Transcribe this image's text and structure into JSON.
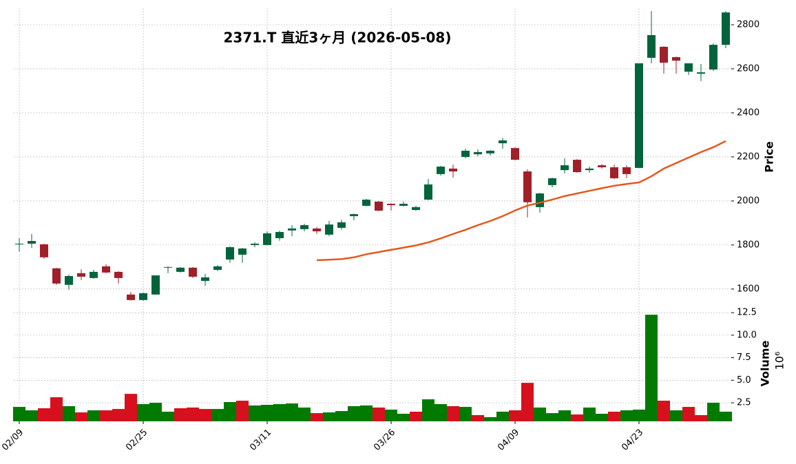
{
  "chart_data": {
    "type": "candlestick",
    "title": "2371.T  直近3ヶ月  (2026-05-08)",
    "ylabel": "Price",
    "y2label": "Volume",
    "y2offset": "10⁶",
    "categories": [
      "02/09",
      null,
      null,
      null,
      null,
      null,
      null,
      null,
      null,
      null,
      "02/25",
      null,
      null,
      null,
      null,
      null,
      null,
      null,
      null,
      null,
      "03/11",
      null,
      null,
      null,
      null,
      null,
      null,
      null,
      null,
      null,
      "03/26",
      null,
      null,
      null,
      null,
      null,
      null,
      null,
      null,
      null,
      "04/09",
      null,
      null,
      null,
      null,
      null,
      null,
      null,
      null,
      null,
      "04/23",
      null,
      null,
      null,
      null,
      null,
      null,
      null
    ],
    "open": [
      1803,
      1806,
      1803,
      1694,
      1619,
      1672,
      1650,
      1703,
      1678,
      1575,
      1550,
      1575,
      1697,
      1678,
      1697,
      1637,
      1687,
      1734,
      1756,
      1800,
      1800,
      1831,
      1866,
      1872,
      1875,
      1847,
      1878,
      1931,
      1978,
      1997,
      1987,
      1978,
      1959,
      2006,
      2122,
      2147,
      2200,
      2212,
      2216,
      2262,
      2240,
      2134,
      1972,
      2072,
      2140,
      2187,
      2140,
      2162,
      2153,
      2153,
      2150,
      2650,
      2700,
      2653,
      2587,
      2578,
      2597,
      2709
    ],
    "high": [
      1831,
      1850,
      1806,
      1697,
      1665,
      1690,
      1687,
      1712,
      1681,
      1587,
      1584,
      1662,
      1703,
      1700,
      1700,
      1669,
      1709,
      1794,
      1787,
      1812,
      1862,
      1865,
      1890,
      1897,
      1881,
      1909,
      1915,
      1943,
      2009,
      2000,
      1990,
      1997,
      1978,
      2100,
      2159,
      2165,
      2237,
      2234,
      2231,
      2287,
      2244,
      2144,
      2037,
      2106,
      2194,
      2190,
      2156,
      2168,
      2165,
      2162,
      2625,
      2862,
      2703,
      2656,
      2625,
      2622,
      2715,
      2862
    ],
    "low": [
      1769,
      1787,
      1737,
      1619,
      1597,
      1641,
      1647,
      1672,
      1625,
      1547,
      1547,
      1575,
      1672,
      1675,
      1650,
      1615,
      1681,
      1719,
      1719,
      1790,
      1800,
      1819,
      1840,
      1862,
      1850,
      1840,
      1869,
      1912,
      1975,
      1953,
      1956,
      1975,
      1956,
      2003,
      2115,
      2106,
      2194,
      2203,
      2206,
      2237,
      2184,
      1925,
      1947,
      2062,
      2125,
      2128,
      2128,
      2147,
      2100,
      2103,
      2150,
      2625,
      2578,
      2578,
      2572,
      2544,
      2590,
      2694
    ],
    "close": [
      1806,
      1818,
      1744,
      1625,
      1659,
      1656,
      1678,
      1675,
      1650,
      1550,
      1581,
      1662,
      1700,
      1697,
      1656,
      1653,
      1703,
      1790,
      1784,
      1806,
      1853,
      1859,
      1875,
      1890,
      1862,
      1893,
      1903,
      1940,
      2006,
      1956,
      1981,
      1987,
      1972,
      2075,
      2156,
      2134,
      2228,
      2222,
      2228,
      2275,
      2187,
      1994,
      2034,
      2103,
      2162,
      2131,
      2147,
      2153,
      2103,
      2122,
      2625,
      2753,
      2628,
      2637,
      2625,
      2584,
      2709,
      2856
    ],
    "volume": [
      2.04,
      1.66,
      1.89,
      3.11,
      2.12,
      1.43,
      1.66,
      1.66,
      1.81,
      3.49,
      2.35,
      2.5,
      1.51,
      1.89,
      1.97,
      1.81,
      1.81,
      2.58,
      2.73,
      2.2,
      2.27,
      2.35,
      2.42,
      1.97,
      1.35,
      1.43,
      1.58,
      2.12,
      2.2,
      1.97,
      1.74,
      1.28,
      1.51,
      2.88,
      2.35,
      2.12,
      2.04,
      1.13,
      0.9,
      1.51,
      1.66,
      4.71,
      1.97,
      1.35,
      1.66,
      1.2,
      1.97,
      1.28,
      1.51,
      1.66,
      1.74,
      12.27,
      2.73,
      1.66,
      2.04,
      1.13,
      2.5,
      1.51
    ],
    "ma": {
      "color": "#e8561b",
      "values": [
        null,
        null,
        null,
        null,
        null,
        null,
        null,
        null,
        null,
        null,
        null,
        null,
        null,
        null,
        null,
        null,
        null,
        null,
        null,
        null,
        null,
        null,
        null,
        null,
        1731,
        1733,
        1736,
        1744,
        1758,
        1768,
        1778,
        1788,
        1798,
        1812,
        1830,
        1850,
        1869,
        1890,
        1909,
        1931,
        1957,
        1979,
        1992,
        2006,
        2022,
        2034,
        2046,
        2058,
        2069,
        2077,
        2084,
        2112,
        2147,
        2172,
        2197,
        2222,
        2244,
        2272
      ]
    },
    "up_color": "#00643c",
    "down_color": "#a01f28",
    "volume_up_color": "#007a00",
    "volume_down_color": "#d7101e",
    "ylim": [
      1537,
      2875
    ],
    "yticks": [
      1600,
      1800,
      2000,
      2200,
      2400,
      2600,
      2800
    ],
    "y2lim": [
      0.44,
      13.2
    ],
    "y2ticks": [
      2.5,
      {
        "value": 5,
        "label": "5.0"
      },
      7.5,
      {
        "value": 10,
        "label": "10.0"
      },
      12.5
    ],
    "grid": true
  }
}
